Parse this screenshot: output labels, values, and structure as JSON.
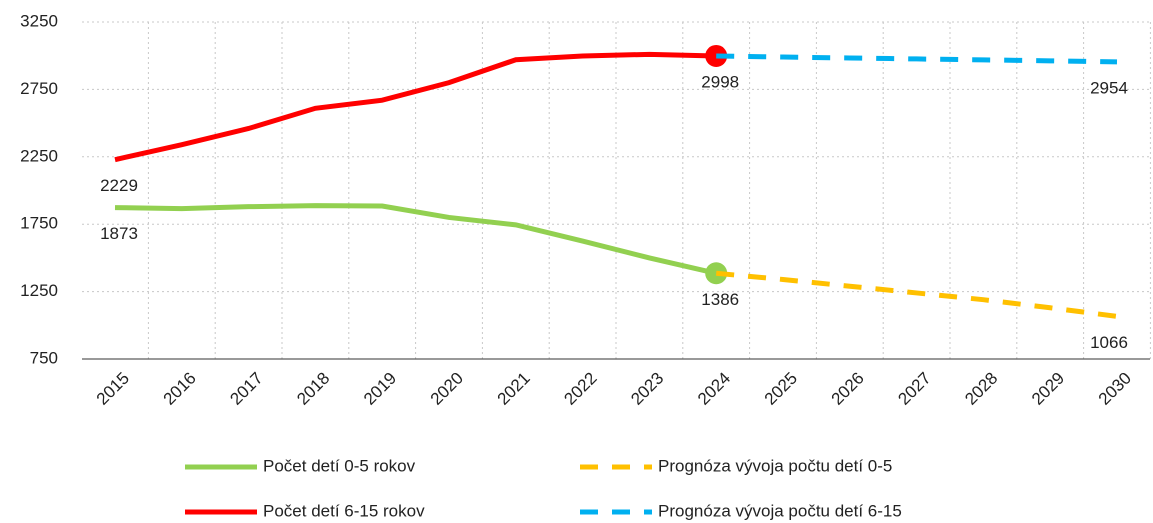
{
  "chart_data": {
    "type": "line",
    "categories": [
      "2015",
      "2016",
      "2017",
      "2018",
      "2019",
      "2020",
      "2021",
      "2022",
      "2023",
      "2024",
      "2025",
      "2026",
      "2027",
      "2028",
      "2029",
      "2030"
    ],
    "series": [
      {
        "name": "Počet detí 0-5 rokov",
        "color": "#92d050",
        "dash": false,
        "values": [
          1873,
          1866,
          1880,
          1888,
          1885,
          1800,
          1745,
          1625,
          1500,
          1386,
          null,
          null,
          null,
          null,
          null,
          null
        ],
        "labeled": [
          0,
          9
        ],
        "markers": [
          9
        ]
      },
      {
        "name": "Prognóza vývoja počtu detí 0-5",
        "color": "#ffc000",
        "dash": true,
        "values": [
          null,
          null,
          null,
          null,
          null,
          null,
          null,
          null,
          null,
          1386,
          1340,
          1290,
          1240,
          1190,
          1130,
          1066
        ],
        "labeled": [
          15
        ],
        "markers": []
      },
      {
        "name": "Počet detí 6-15 rokov",
        "color": "#ff0000",
        "dash": false,
        "values": [
          2229,
          2340,
          2460,
          2610,
          2670,
          2800,
          2970,
          2998,
          3010,
          2998,
          null,
          null,
          null,
          null,
          null,
          null
        ],
        "labeled": [
          0,
          9
        ],
        "markers": [
          9
        ]
      },
      {
        "name": "Prognóza vývoja počtu detí 6-15",
        "color": "#00b0f0",
        "dash": true,
        "values": [
          null,
          null,
          null,
          null,
          null,
          null,
          null,
          null,
          null,
          2998,
          2990,
          2983,
          2976,
          2969,
          2962,
          2954
        ],
        "labeled": [
          15
        ],
        "markers": []
      }
    ],
    "ylim": [
      750,
      3250
    ],
    "yticks": [
      750,
      1250,
      1750,
      2250,
      2750,
      3250
    ],
    "grid": true
  }
}
